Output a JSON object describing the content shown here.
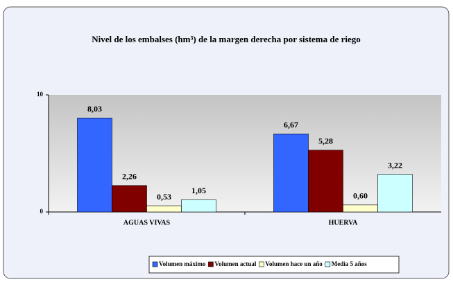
{
  "chart_data": {
    "type": "bar",
    "title": "Nivel de los embalses (hm³) de la margen derecha por sistema de riego",
    "categories": [
      "AGUAS VIVAS",
      "HUERVA"
    ],
    "series": [
      {
        "name": "Volumen máximo",
        "color": "#3366ff",
        "values": [
          8.03,
          6.67
        ],
        "value_labels": [
          "8,03",
          "6,67"
        ]
      },
      {
        "name": "Volumen actual",
        "color": "#800000",
        "values": [
          2.26,
          5.28
        ],
        "value_labels": [
          "2,26",
          "5,28"
        ]
      },
      {
        "name": "Volumen hace un año",
        "color": "#ffffcc",
        "values": [
          0.53,
          0.6
        ],
        "value_labels": [
          "0,53",
          "0,60"
        ]
      },
      {
        "name": "Media 5 años",
        "color": "#ccffff",
        "values": [
          1.05,
          3.22
        ],
        "value_labels": [
          "1,05",
          "3,22"
        ]
      }
    ],
    "ylim": [
      0,
      10
    ],
    "yticks": [
      0,
      10
    ],
    "legend": "bottom"
  }
}
